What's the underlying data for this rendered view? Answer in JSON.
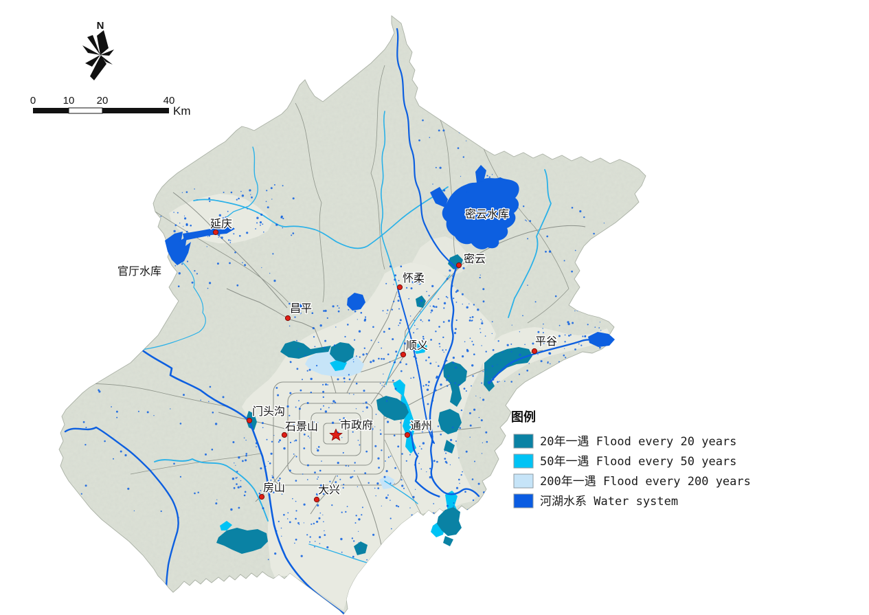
{
  "compass": {
    "label": "N"
  },
  "scale_bar": {
    "tick_labels": [
      "0",
      "10",
      "20",
      "40"
    ],
    "unit": "Km"
  },
  "legend": {
    "title": "图例",
    "items": [
      {
        "label": "20年一遇 Flood every 20 years",
        "color": "#0a82a4"
      },
      {
        "label": "50年一遇 Flood every 50 years",
        "color": "#00c3f5"
      },
      {
        "label": "200年一遇 Flood every 200 years",
        "color": "#c6e4f8"
      },
      {
        "label": "河湖水系 Water system",
        "color": "#0a5ce2"
      }
    ]
  },
  "places": [
    {
      "name": "yanqing",
      "label": "延庆",
      "marker": "dot"
    },
    {
      "name": "guanting-reservoir",
      "label": "官厅水库",
      "marker": "none"
    },
    {
      "name": "miyun-reservoir",
      "label": "密云水库",
      "marker": "none"
    },
    {
      "name": "miyun",
      "label": "密云",
      "marker": "dot"
    },
    {
      "name": "huairou",
      "label": "怀柔",
      "marker": "dot"
    },
    {
      "name": "changping",
      "label": "昌平",
      "marker": "dot"
    },
    {
      "name": "shunyi",
      "label": "顺义",
      "marker": "dot"
    },
    {
      "name": "pinggu",
      "label": "平谷",
      "marker": "dot"
    },
    {
      "name": "mentougou",
      "label": "门头沟",
      "marker": "dot"
    },
    {
      "name": "shijingshan",
      "label": "石景山",
      "marker": "dot"
    },
    {
      "name": "city-government",
      "label": "市政府",
      "marker": "star"
    },
    {
      "name": "tongzhou",
      "label": "通州",
      "marker": "dot"
    },
    {
      "name": "fangshan",
      "label": "房山",
      "marker": "dot"
    },
    {
      "name": "daxing",
      "label": "大兴",
      "marker": "dot"
    }
  ],
  "colors": {
    "flood20": "#0a82a4",
    "flood50": "#00c3f5",
    "flood200": "#c6e4f8",
    "water": "#0d5fe0",
    "river_light": "#2ab1e8",
    "plain": "#e8eae1",
    "mountain": "#dde2d7",
    "outline": "#a9b0a4",
    "district_line": "#8e948a",
    "road": "#8b9089",
    "marker_red": "#df1f16",
    "text": "#151515"
  }
}
